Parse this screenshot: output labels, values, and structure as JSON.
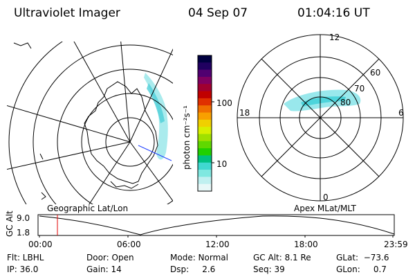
{
  "header": {
    "title": "Ultraviolet Imager",
    "date": "04 Sep 07",
    "time": "01:04:16 UT"
  },
  "colorbar": {
    "unit_label": "photon cm⁻²s⁻¹",
    "ticks": [
      "100",
      "10"
    ],
    "colors": [
      "#000040",
      "#200060",
      "#500070",
      "#800060",
      "#a00030",
      "#c00000",
      "#e03000",
      "#f07000",
      "#f8a000",
      "#f0d000",
      "#d8f000",
      "#a0e000",
      "#60d800",
      "#20d000",
      "#00c080",
      "#40d8d0",
      "#80e8e0",
      "#c0f0f0",
      "#e8f8f8"
    ]
  },
  "left_map": {
    "caption": "Geographic Lat/Lon"
  },
  "right_map": {
    "caption": "Apex MLat/MLT",
    "mlt_labels": {
      "top": "12",
      "right": "6",
      "bottom": "0",
      "left": "18"
    },
    "lat_labels": [
      "60",
      "70",
      "80"
    ]
  },
  "altitude_plot": {
    "ylabel": "GC Alt",
    "yticks": [
      "9.0",
      "1.8"
    ],
    "xticks": [
      "00:00",
      "06:00",
      "12:00",
      "18:00",
      "23:59"
    ],
    "marker_color": "#e00000"
  },
  "info": {
    "flt": "Flt: LBHL",
    "door": "Door: Open",
    "mode": "Mode: Normal",
    "gc_alt": "GC Alt: 8.1 Re",
    "glat": "GLat:  −73.6",
    "ip": "IP: 36.0",
    "gain": "Gain: 14",
    "dsp": "Dsp:     2.6",
    "seq": "Seq: 39",
    "glon": "GLon:     0.7"
  }
}
